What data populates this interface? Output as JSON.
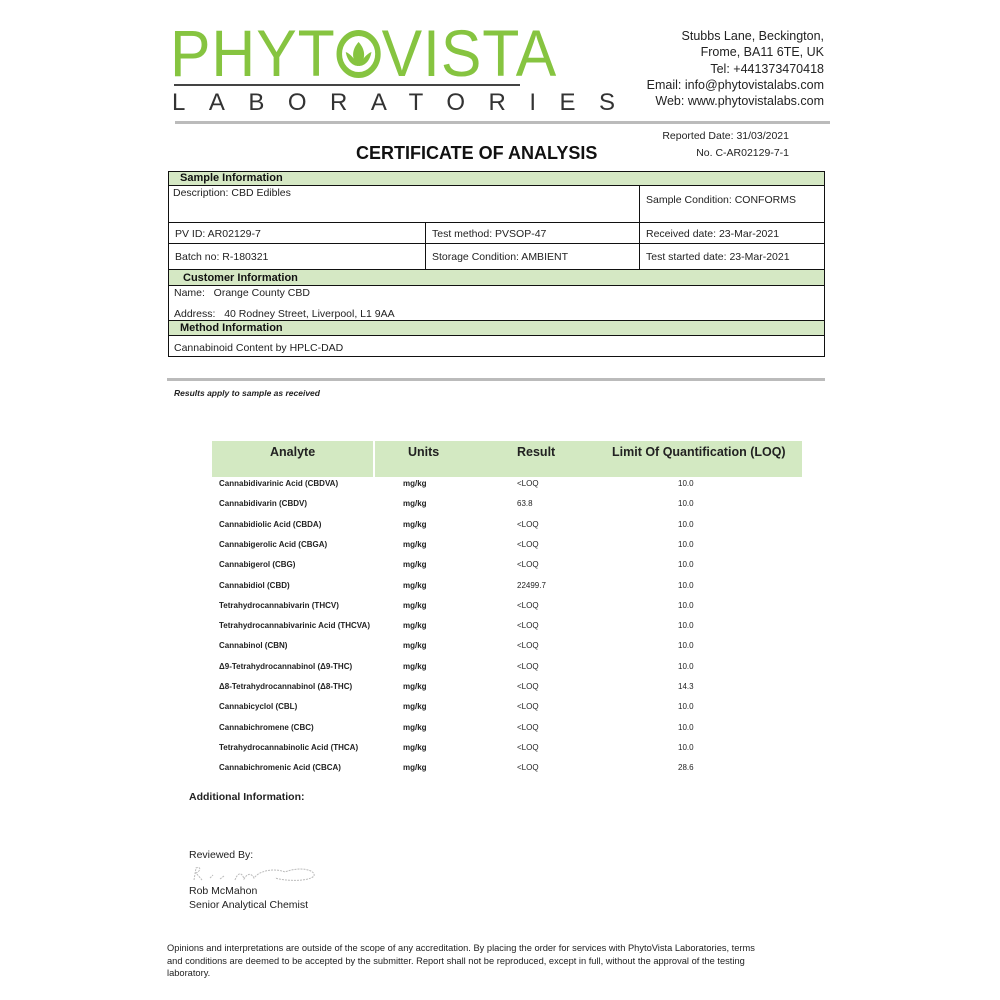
{
  "header": {
    "logo_main": "PHYTOVISTA",
    "logo_sub": "LABORATORIES",
    "address_lines": [
      "Stubbs Lane, Beckington,",
      "Frome, BA11 6TE, UK",
      "Tel: +441373470418",
      "Email: info@phytovistalabs.com",
      "Web: www.phytovistalabs.com"
    ],
    "reported_date": "Reported Date: 31/03/2021",
    "certificate_no": "No. C-AR02129-7-1",
    "title": "CERTIFICATE OF ANALYSIS",
    "brand_color": "#86c440"
  },
  "sample": {
    "heading": "Sample Information",
    "description": "Description: CBD Edibles",
    "condition": "Sample Condition: CONFORMS",
    "pv_id": "PV ID: AR02129-7",
    "test_method": "Test method: PVSOP-47",
    "received_date": "Received date: 23-Mar-2021",
    "batch_no": "Batch no: R-180321",
    "storage": "Storage Condition: AMBIENT",
    "test_started": "Test started date: 23-Mar-2021"
  },
  "customer": {
    "heading": "Customer Information",
    "name": "Name:   Orange County CBD",
    "address": "Address:   40 Rodney Street, Liverpool, L1 9AA"
  },
  "method": {
    "heading": "Method Information",
    "text": "Cannabinoid Content by HPLC-DAD"
  },
  "note": "Results apply to sample as received",
  "results": {
    "headers": [
      "Analyte",
      "Units",
      "Result",
      "Limit Of Quantification (LOQ)"
    ],
    "rows": [
      [
        "Cannabidivarinic Acid (CBDVA)",
        "mg/kg",
        "<LOQ",
        "10.0"
      ],
      [
        "Cannabidivarin (CBDV)",
        "mg/kg",
        "63.8",
        "10.0"
      ],
      [
        "Cannabidiolic Acid (CBDA)",
        "mg/kg",
        "<LOQ",
        "10.0"
      ],
      [
        "Cannabigerolic Acid (CBGA)",
        "mg/kg",
        "<LOQ",
        "10.0"
      ],
      [
        "Cannabigerol (CBG)",
        "mg/kg",
        "<LOQ",
        "10.0"
      ],
      [
        "Cannabidiol (CBD)",
        "mg/kg",
        "22499.7",
        "10.0"
      ],
      [
        "Tetrahydrocannabivarin (THCV)",
        "mg/kg",
        "<LOQ",
        "10.0"
      ],
      [
        "Tetrahydrocannabivarinic Acid (THCVA)",
        "mg/kg",
        "<LOQ",
        "10.0"
      ],
      [
        "Cannabinol (CBN)",
        "mg/kg",
        "<LOQ",
        "10.0"
      ],
      [
        "Δ9-Tetrahydrocannabinol (Δ9-THC)",
        "mg/kg",
        "<LOQ",
        "10.0"
      ],
      [
        "Δ8-Tetrahydrocannabinol (Δ8-THC)",
        "mg/kg",
        "<LOQ",
        "14.3"
      ],
      [
        "Cannabicyclol (CBL)",
        "mg/kg",
        "<LOQ",
        "10.0"
      ],
      [
        "Cannabichromene (CBC)",
        "mg/kg",
        "<LOQ",
        "10.0"
      ],
      [
        "Tetrahydrocannabinolic Acid (THCA)",
        "mg/kg",
        "<LOQ",
        "10.0"
      ],
      [
        "Cannabichromenic Acid (CBCA)",
        "mg/kg",
        "<LOQ",
        "28.6"
      ]
    ]
  },
  "additional_info": "Additional Information:",
  "review": {
    "label": "Reviewed By:",
    "signature": "R. McMahon",
    "name": "Rob McMahon",
    "role": "Senior Analytical Chemist"
  },
  "disclaimer": "Opinions and interpretations are outside of the scope of any accreditation. By placing the order for services with PhytoVista Laboratories, terms and conditions are deemed to be accepted by the submitter. Report shall not be reproduced, except in full, without the approval of the testing laboratory."
}
